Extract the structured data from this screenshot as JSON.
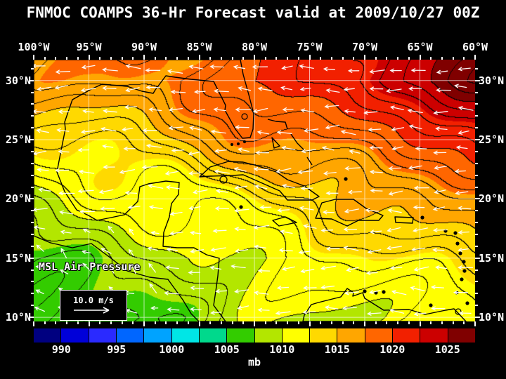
{
  "title": "FNMOC COAMPS 36-Hr Forecast valid at 2009/10/27 00Z",
  "axes": {
    "lon_labels": [
      "100°W",
      "95°W",
      "90°W",
      "85°W",
      "80°W",
      "75°W",
      "70°W",
      "65°W",
      "60°W"
    ],
    "lat_labels": [
      "30°N",
      "25°N",
      "20°N",
      "15°N",
      "10°N"
    ]
  },
  "overlay": {
    "field_label": "MSL Air Pressure",
    "wind_reference": "10.0 m/s"
  },
  "colorbar": {
    "unit": "mb",
    "min": 987.5,
    "max": 1027.5,
    "step": 2.5,
    "tick_labels": [
      "990",
      "995",
      "1000",
      "1005",
      "1010",
      "1015",
      "1020",
      "1025"
    ],
    "colors": [
      "#000080",
      "#0000d9",
      "#2a2aff",
      "#0066ff",
      "#00a3ff",
      "#00e6e6",
      "#00d98c",
      "#33cc00",
      "#b3e600",
      "#ffff00",
      "#ffd900",
      "#ffa600",
      "#ff6600",
      "#f22000",
      "#cc0000",
      "#800000"
    ]
  },
  "chart_data": {
    "type": "heatmap",
    "title": "FNMOC COAMPS 36-Hr Forecast valid at 2009/10/27 00Z",
    "field": "MSL Air Pressure (mb)",
    "lon_deg_w": [
      100,
      95,
      90,
      85,
      80,
      75,
      70,
      65,
      60
    ],
    "lat_deg_n": [
      30,
      25,
      20,
      15,
      10
    ],
    "values_mb": [
      [
        1016,
        1017,
        1017.5,
        1018.5,
        1020,
        1021,
        1022.5,
        1024,
        1026
      ],
      [
        1013,
        1013.5,
        1014.5,
        1015.5,
        1017,
        1018,
        1019,
        1020,
        1021.5
      ],
      [
        1009.5,
        1010.5,
        1011,
        1012,
        1013,
        1014,
        1015,
        1016,
        1017
      ],
      [
        1007,
        1007.5,
        1008.5,
        1009.5,
        1010.5,
        1011,
        1012,
        1013,
        1013.5
      ],
      [
        1006.5,
        1006.5,
        1007.5,
        1008.5,
        1009.5,
        1010,
        1010.5,
        1011,
        1011.5
      ]
    ],
    "contour_interval_mb": 1,
    "colorbar_range_mb": [
      987.5,
      1027.5
    ],
    "colorbar_unit": "mb",
    "wind": {
      "pattern": "easterly trade winds (arrows point westward)",
      "reference_vector_ms": 10.0
    }
  }
}
